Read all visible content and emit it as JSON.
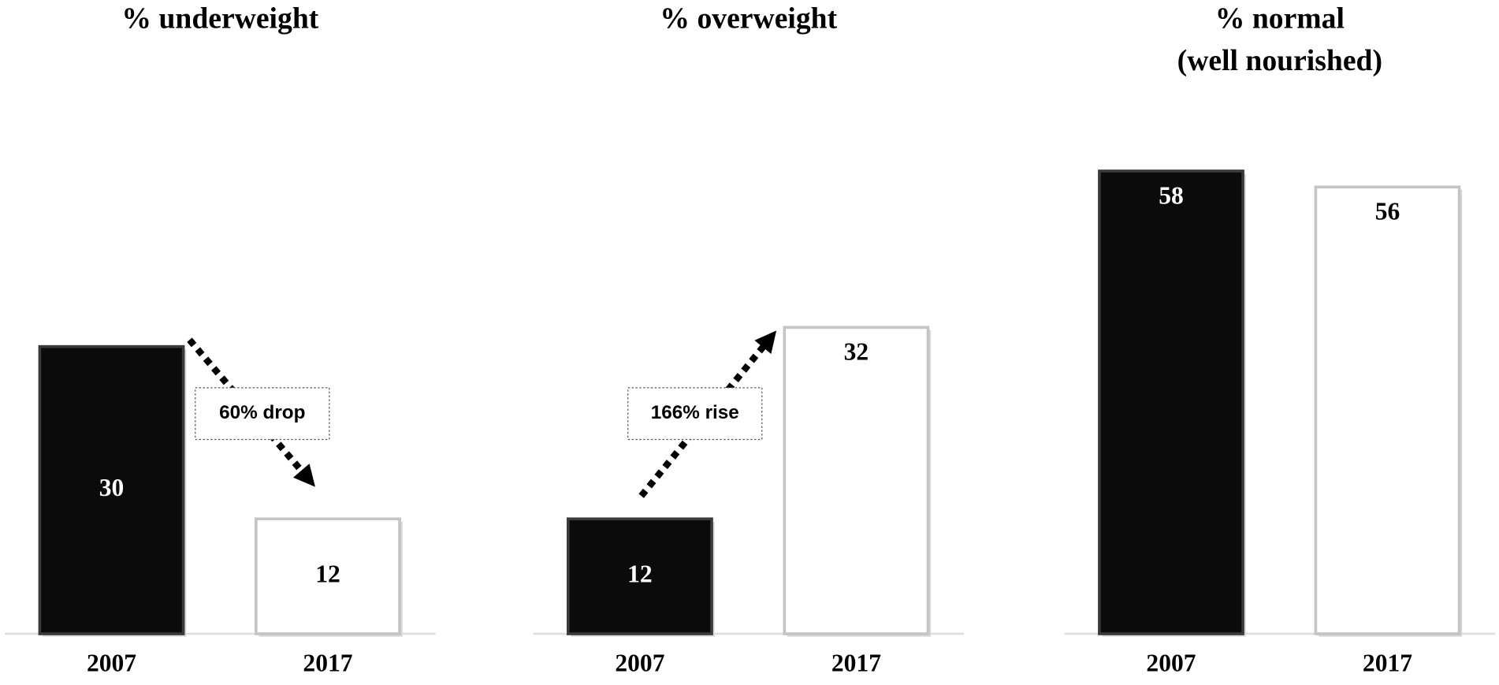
{
  "chart_data": [
    {
      "type": "bar",
      "title": "% underweight",
      "categories": [
        "2007",
        "2017"
      ],
      "values": [
        30,
        12
      ],
      "colors": [
        "#0b0b0b",
        "#ffffff"
      ],
      "ylim": [
        0,
        50
      ],
      "annotation": "60% drop"
    },
    {
      "type": "bar",
      "title": "% overweight",
      "categories": [
        "2007",
        "2017"
      ],
      "values": [
        12,
        32
      ],
      "colors": [
        "#0b0b0b",
        "#ffffff"
      ],
      "ylim": [
        0,
        50
      ],
      "annotation": "166% rise"
    },
    {
      "type": "bar",
      "title": [
        "% normal",
        "(well nourished)"
      ],
      "categories": [
        "2007",
        "2017"
      ],
      "values": [
        58,
        56
      ],
      "colors": [
        "#0b0b0b",
        "#ffffff"
      ],
      "ylim": [
        0,
        60
      ]
    }
  ]
}
